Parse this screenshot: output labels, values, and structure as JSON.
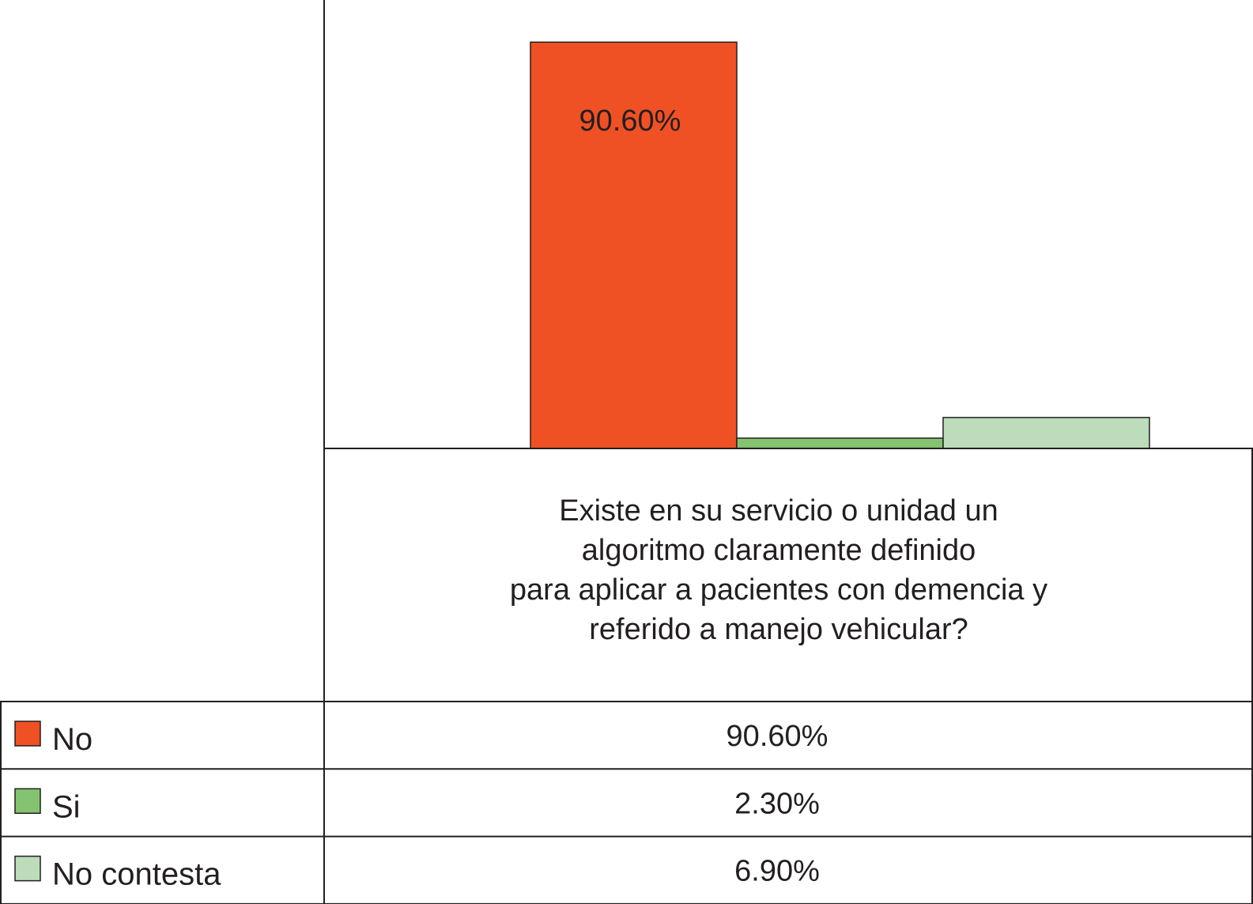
{
  "chart_data": {
    "type": "bar",
    "categories": [
      "Existe en su servicio o unidad un",
      "algoritmo claramente definido",
      "para aplicar a pacientes con demencia y",
      "referido a manejo vehicular?"
    ],
    "series": [
      {
        "name": "No",
        "value": 90.6,
        "value_label": "90.60%",
        "color": "#ef5125"
      },
      {
        "name": "Si",
        "value": 2.3,
        "value_label": "2.30%",
        "color": "#84c36f"
      },
      {
        "name": "No contesta",
        "value": 6.9,
        "value_label": "6.90%",
        "color": "#bcdcba"
      }
    ],
    "data_labels": [
      "90.60%"
    ],
    "ylim": [
      0,
      100
    ],
    "legend": "table-below",
    "grid": false
  }
}
